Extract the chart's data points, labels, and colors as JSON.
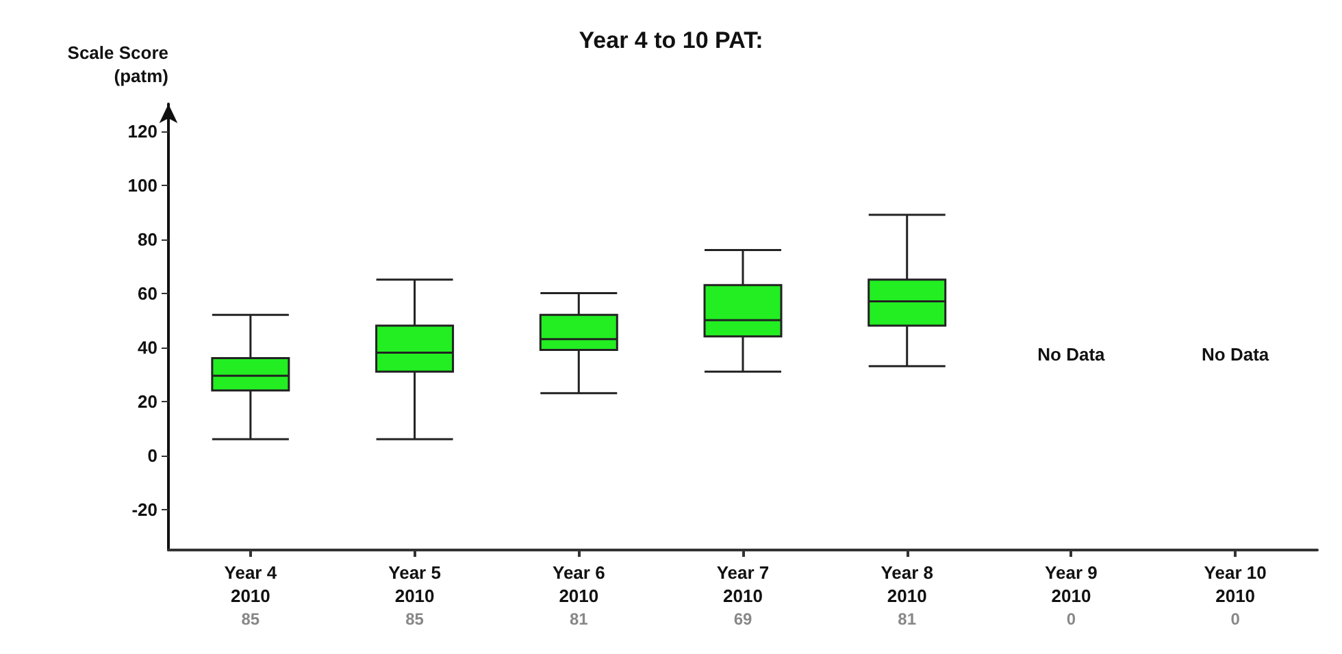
{
  "chart_data": {
    "type": "box",
    "title": "Year 4 to 10 PAT:",
    "ylabel": "Scale Score\n(patm)",
    "categories": [
      "Year 4\n2010\n85",
      "Year 5\n2010\n85",
      "Year 6\n2010\n81",
      "Year 7\n2010\n69",
      "Year 8\n2010\n81",
      "Year 9\n2010\n0",
      "Year 10\n2010\n0"
    ],
    "color": "#22ee22",
    "boxes": [
      {
        "low": 6,
        "q1": 24,
        "median": 29.5,
        "q3": 36,
        "high": 52
      },
      {
        "low": 6,
        "q1": 31,
        "median": 38,
        "q3": 48,
        "high": 65
      },
      {
        "low": 23,
        "q1": 39,
        "median": 43,
        "q3": 52,
        "high": 60
      },
      {
        "low": 31,
        "q1": 44,
        "median": 50,
        "q3": 63,
        "high": 76
      },
      {
        "low": 33,
        "q1": 48,
        "median": 57,
        "q3": 65,
        "high": 89
      },
      null,
      null
    ],
    "annotations": [
      "No Data",
      "No Data"
    ],
    "ylim": [
      -35,
      130
    ],
    "yticks": [
      -20,
      0,
      20,
      40,
      60,
      80,
      100,
      120
    ],
    "grid": false
  }
}
